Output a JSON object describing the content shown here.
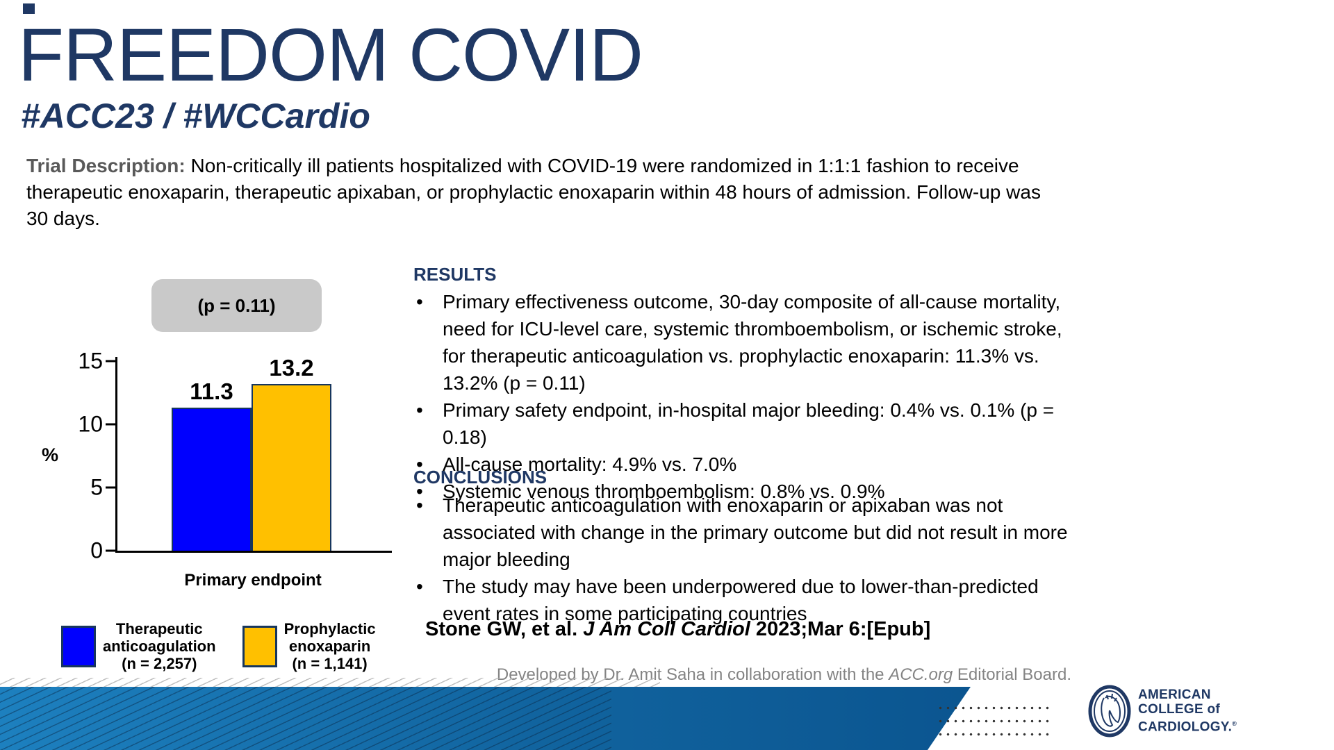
{
  "slide": {
    "title": "FREEDOM COVID",
    "subtitle": "#ACC23 / #WCCardio",
    "description_label": "Trial Description:",
    "description_text": " Non-critically ill patients hospitalized with COVID-19 were randomized in 1:1:1 fashion to receive therapeutic enoxaparin, therapeutic apixaban, or prophylactic enoxaparin within 48 hours of admission. Follow-up was 30 days."
  },
  "chart_data": {
    "type": "bar",
    "annotation": "(p = 0.11)",
    "categories": [
      "Primary endpoint"
    ],
    "series": [
      {
        "name": "Therapeutic anticoagulation (n = 2,257)",
        "values": [
          11.3
        ],
        "color": "#0000fe"
      },
      {
        "name": "Prophylactic enoxaparin (n = 1,141)",
        "values": [
          13.2
        ],
        "color": "#ffc000"
      }
    ],
    "xlabel": "Primary endpoint",
    "ylabel": "%",
    "ylim": [
      0,
      15
    ],
    "yticks": [
      0,
      5,
      10,
      15
    ],
    "grid": false,
    "legend_position": "bottom"
  },
  "legend": [
    {
      "lines": [
        "Therapeutic",
        "anticoagulation",
        "(n = 2,257)"
      ],
      "color": "#0000fe"
    },
    {
      "lines": [
        "Prophylactic",
        "enoxaparin",
        "(n = 1,141)"
      ],
      "color": "#ffc000"
    }
  ],
  "results": {
    "heading": "RESULTS",
    "bullets": [
      "Primary effectiveness outcome, 30-day composite of all-cause mortality, need for ICU-level care, systemic thromboembolism, or ischemic stroke, for therapeutic anticoagulation vs. prophylactic enoxaparin: 11.3% vs. 13.2% (p = 0.11)",
      "Primary safety endpoint, in-hospital major bleeding: 0.4% vs. 0.1% (p = 0.18)",
      "All-cause mortality: 4.9% vs. 7.0%",
      "Systemic venous thromboembolism: 0.8% vs. 0.9%"
    ]
  },
  "conclusions": {
    "heading": "CONCLUSIONS",
    "bullets": [
      "Therapeutic anticoagulation with enoxaparin or apixaban was not associated with change in the primary outcome but did not result in more major bleeding",
      "The study may have been underpowered due to lower-than-predicted event rates in some participating countries"
    ]
  },
  "citation": {
    "prefix": "Stone GW, et al. ",
    "journal": "J Am Coll Cardiol",
    "suffix": " 2023;Mar 6:[Epub]"
  },
  "footer": {
    "prefix": "Developed by Dr. Amit Saha in collaboration with the ",
    "italic": "ACC.org",
    "suffix": " Editorial Board."
  },
  "logo": {
    "line1": "AMERICAN",
    "line2": "COLLEGE of",
    "line3": "CARDIOLOGY.",
    "registered": "®"
  },
  "colors": {
    "navy": "#1f3864",
    "bar_blue": "#0000fe",
    "bar_gold": "#ffc000",
    "bar_border": "#17365d",
    "p_box_bg": "#c9c9c9",
    "description_label_gray": "#595959",
    "footer_gray": "#848484",
    "band_blue_left": "#1d80bf",
    "band_blue_right": "#0b5590"
  }
}
